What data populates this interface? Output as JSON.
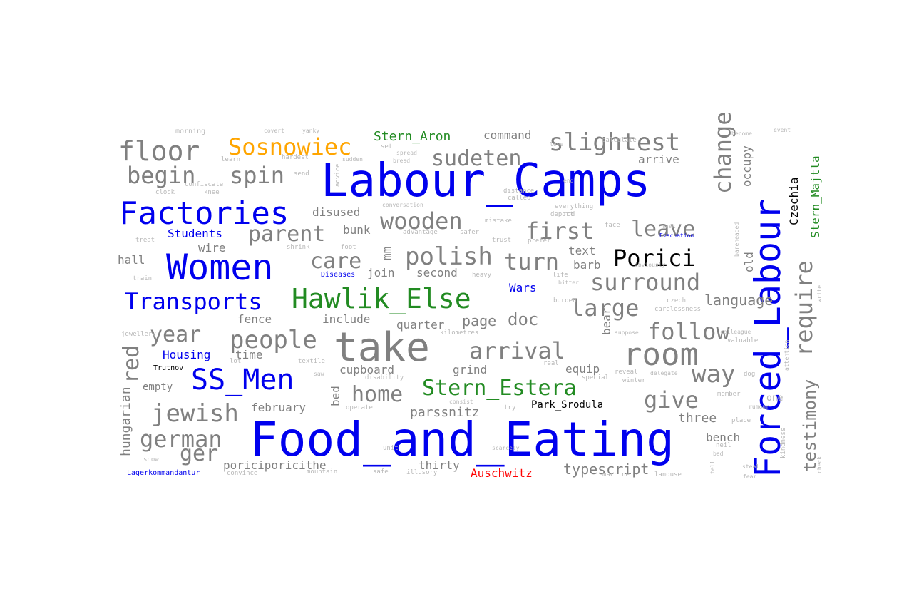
{
  "palette": {
    "gray": "#808080",
    "blue": "#0000ee",
    "green": "#228b22",
    "orange": "#ffa500",
    "black": "#000000",
    "red": "#ff0000",
    "light_gray": "#b8b8b8"
  },
  "words": [
    {
      "text": "Labour_Camps",
      "color": "blue"
    },
    {
      "text": "Food_and_Eating",
      "color": "blue"
    },
    {
      "text": "Forced_Labour",
      "color": "blue"
    },
    {
      "text": "take",
      "color": "gray"
    },
    {
      "text": "Women",
      "color": "blue"
    },
    {
      "text": "Factories",
      "color": "blue"
    },
    {
      "text": "Hawlik_Else",
      "color": "green"
    },
    {
      "text": "room",
      "color": "gray"
    },
    {
      "text": "SS_Men",
      "color": "blue"
    },
    {
      "text": "floor",
      "color": "gray"
    },
    {
      "text": "Sosnowiec",
      "color": "orange"
    },
    {
      "text": "slightest",
      "color": "gray"
    },
    {
      "text": "Transports",
      "color": "blue"
    },
    {
      "text": "Porici",
      "color": "black"
    },
    {
      "text": "Stern_Estera",
      "color": "green"
    },
    {
      "text": "begin",
      "color": "gray"
    },
    {
      "text": "spin",
      "color": "gray"
    },
    {
      "text": "sudeten",
      "color": "gray"
    },
    {
      "text": "polish",
      "color": "gray"
    },
    {
      "text": "wooden",
      "color": "gray"
    },
    {
      "text": "parent",
      "color": "gray"
    },
    {
      "text": "people",
      "color": "gray"
    },
    {
      "text": "jewish",
      "color": "gray"
    },
    {
      "text": "german",
      "color": "gray"
    },
    {
      "text": "arrival",
      "color": "gray"
    },
    {
      "text": "surround",
      "color": "gray"
    },
    {
      "text": "follow",
      "color": "gray"
    },
    {
      "text": "large",
      "color": "gray"
    },
    {
      "text": "first",
      "color": "gray"
    },
    {
      "text": "leave",
      "color": "gray"
    },
    {
      "text": "turn",
      "color": "gray"
    },
    {
      "text": "care",
      "color": "gray"
    },
    {
      "text": "home",
      "color": "gray"
    },
    {
      "text": "year",
      "color": "gray"
    },
    {
      "text": "give",
      "color": "gray"
    },
    {
      "text": "way",
      "color": "gray"
    },
    {
      "text": "ger",
      "color": "gray"
    },
    {
      "text": "change",
      "color": "gray"
    },
    {
      "text": "require",
      "color": "gray"
    },
    {
      "text": "testimony",
      "color": "gray"
    },
    {
      "text": "red",
      "color": "gray"
    },
    {
      "text": "hungarian",
      "color": "gray"
    },
    {
      "text": "doc",
      "color": "gray"
    },
    {
      "text": "page",
      "color": "gray"
    },
    {
      "text": "language",
      "color": "gray"
    },
    {
      "text": "typescript",
      "color": "gray"
    },
    {
      "text": "parssnitz",
      "color": "gray"
    },
    {
      "text": "poriciporicithe",
      "color": "gray"
    },
    {
      "text": "february",
      "color": "gray"
    },
    {
      "text": "thirty",
      "color": "gray"
    },
    {
      "text": "cupboard",
      "color": "gray"
    },
    {
      "text": "grind",
      "color": "gray"
    },
    {
      "text": "equip",
      "color": "gray"
    },
    {
      "text": "three",
      "color": "gray"
    },
    {
      "text": "bench",
      "color": "gray"
    },
    {
      "text": "fence",
      "color": "gray"
    },
    {
      "text": "include",
      "color": "gray"
    },
    {
      "text": "quarter",
      "color": "gray"
    },
    {
      "text": "second",
      "color": "gray"
    },
    {
      "text": "join",
      "color": "gray"
    },
    {
      "text": "bunk",
      "color": "gray"
    },
    {
      "text": "disused",
      "color": "gray"
    },
    {
      "text": "wire",
      "color": "gray"
    },
    {
      "text": "hall",
      "color": "gray"
    },
    {
      "text": "empty",
      "color": "gray"
    },
    {
      "text": "time",
      "color": "gray"
    },
    {
      "text": "text",
      "color": "gray"
    },
    {
      "text": "barb",
      "color": "gray"
    },
    {
      "text": "command",
      "color": "gray"
    },
    {
      "text": "arrive",
      "color": "gray"
    },
    {
      "text": "occupy",
      "color": "gray"
    },
    {
      "text": "old",
      "color": "gray"
    },
    {
      "text": "bed",
      "color": "gray"
    },
    {
      "text": "bear",
      "color": "gray"
    },
    {
      "text": "mm",
      "color": "gray"
    },
    {
      "text": "Czechia",
      "color": "black"
    },
    {
      "text": "Park_Srodula",
      "color": "black"
    },
    {
      "text": "Stern_Aron",
      "color": "green"
    },
    {
      "text": "Stern_Majtla",
      "color": "green"
    },
    {
      "text": "Students",
      "color": "blue"
    },
    {
      "text": "Housing",
      "color": "blue"
    },
    {
      "text": "Wars",
      "color": "blue"
    },
    {
      "text": "Auschwitz",
      "color": "red"
    },
    {
      "text": "Lagerkommandantur",
      "color": "blue"
    },
    {
      "text": "Diseases",
      "color": "blue"
    },
    {
      "text": "Evacuation",
      "color": "blue"
    },
    {
      "text": "Trutnov",
      "color": "black"
    },
    {
      "text": "morning",
      "color": "light_gray"
    },
    {
      "text": "learn",
      "color": "light_gray"
    },
    {
      "text": "hardest",
      "color": "light_gray"
    },
    {
      "text": "send",
      "color": "light_gray"
    },
    {
      "text": "advice",
      "color": "light_gray"
    },
    {
      "text": "clock",
      "color": "light_gray"
    },
    {
      "text": "knee",
      "color": "light_gray"
    },
    {
      "text": "confiscate",
      "color": "light_gray"
    },
    {
      "text": "distance",
      "color": "light_gray"
    },
    {
      "text": "called",
      "color": "light_gray"
    },
    {
      "text": "everything",
      "color": "light_gray"
    },
    {
      "text": "rod",
      "color": "light_gray"
    },
    {
      "text": "mistake",
      "color": "light_gray"
    },
    {
      "text": "advantage",
      "color": "light_gray"
    },
    {
      "text": "safer",
      "color": "light_gray"
    },
    {
      "text": "trust",
      "color": "light_gray"
    },
    {
      "text": "prefer",
      "color": "light_gray"
    },
    {
      "text": "shrink",
      "color": "light_gray"
    },
    {
      "text": "foot",
      "color": "light_gray"
    },
    {
      "text": "treat",
      "color": "light_gray"
    },
    {
      "text": "train",
      "color": "light_gray"
    },
    {
      "text": "heavy",
      "color": "light_gray"
    },
    {
      "text": "life",
      "color": "light_gray"
    },
    {
      "text": "bitter",
      "color": "light_gray"
    },
    {
      "text": "czech",
      "color": "light_gray"
    },
    {
      "text": "carelessness",
      "color": "light_gray"
    },
    {
      "text": "burden",
      "color": "light_gray"
    },
    {
      "text": "kilometres",
      "color": "light_gray"
    },
    {
      "text": "jewellery",
      "color": "light_gray"
    },
    {
      "text": "lot",
      "color": "light_gray"
    },
    {
      "text": "textile",
      "color": "light_gray"
    },
    {
      "text": "real",
      "color": "light_gray"
    },
    {
      "text": "reveal",
      "color": "light_gray"
    },
    {
      "text": "valuable",
      "color": "light_gray"
    },
    {
      "text": "winter",
      "color": "light_gray"
    },
    {
      "text": "deport",
      "color": "light_gray"
    },
    {
      "text": "operate",
      "color": "light_gray"
    },
    {
      "text": "unit",
      "color": "light_gray"
    },
    {
      "text": "try",
      "color": "light_gray"
    },
    {
      "text": "member",
      "color": "light_gray"
    },
    {
      "text": "snow",
      "color": "light_gray"
    },
    {
      "text": "convince",
      "color": "light_gray"
    },
    {
      "text": "mountain",
      "color": "light_gray"
    },
    {
      "text": "safe",
      "color": "light_gray"
    },
    {
      "text": "illusory",
      "color": "light_gray"
    },
    {
      "text": "disability",
      "color": "light_gray"
    },
    {
      "text": "machine",
      "color": "light_gray"
    },
    {
      "text": "landuse",
      "color": "light_gray"
    },
    {
      "text": "place",
      "color": "light_gray"
    },
    {
      "text": "kindness",
      "color": "light_gray"
    },
    {
      "text": "neil",
      "color": "light_gray"
    },
    {
      "text": "calculate",
      "color": "light_gray"
    },
    {
      "text": "face",
      "color": "light_gray"
    },
    {
      "text": "special",
      "color": "light_gray"
    },
    {
      "text": "dog",
      "color": "light_gray"
    },
    {
      "text": "one",
      "color": "light_gray"
    },
    {
      "text": "covert",
      "color": "light_gray"
    },
    {
      "text": "yanky",
      "color": "light_gray"
    },
    {
      "text": "become",
      "color": "light_gray"
    },
    {
      "text": "event",
      "color": "light_gray"
    },
    {
      "text": "spread",
      "color": "light_gray"
    },
    {
      "text": "write",
      "color": "light_gray"
    },
    {
      "text": "check",
      "color": "light_gray"
    },
    {
      "text": "rumour",
      "color": "light_gray"
    },
    {
      "text": "attention",
      "color": "light_gray"
    },
    {
      "text": "consist",
      "color": "light_gray"
    },
    {
      "text": "end",
      "color": "light_gray"
    },
    {
      "text": "mask",
      "color": "light_gray"
    },
    {
      "text": "set",
      "color": "light_gray"
    },
    {
      "text": "bread",
      "color": "light_gray"
    },
    {
      "text": "love",
      "color": "light_gray"
    },
    {
      "text": "sudden",
      "color": "light_gray"
    },
    {
      "text": "fear",
      "color": "light_gray"
    },
    {
      "text": "steal",
      "color": "light_gray"
    },
    {
      "text": "tell",
      "color": "light_gray"
    },
    {
      "text": "conversation",
      "color": "light_gray"
    },
    {
      "text": "suppose",
      "color": "light_gray"
    },
    {
      "text": "delegate",
      "color": "light_gray"
    },
    {
      "text": "saw",
      "color": "light_gray"
    },
    {
      "text": "bad",
      "color": "light_gray"
    },
    {
      "text": "scarcely",
      "color": "light_gray"
    },
    {
      "text": "obviously",
      "color": "light_gray"
    },
    {
      "text": "colleague",
      "color": "light_gray"
    },
    {
      "text": "bareheaded",
      "color": "light_gray"
    }
  ]
}
